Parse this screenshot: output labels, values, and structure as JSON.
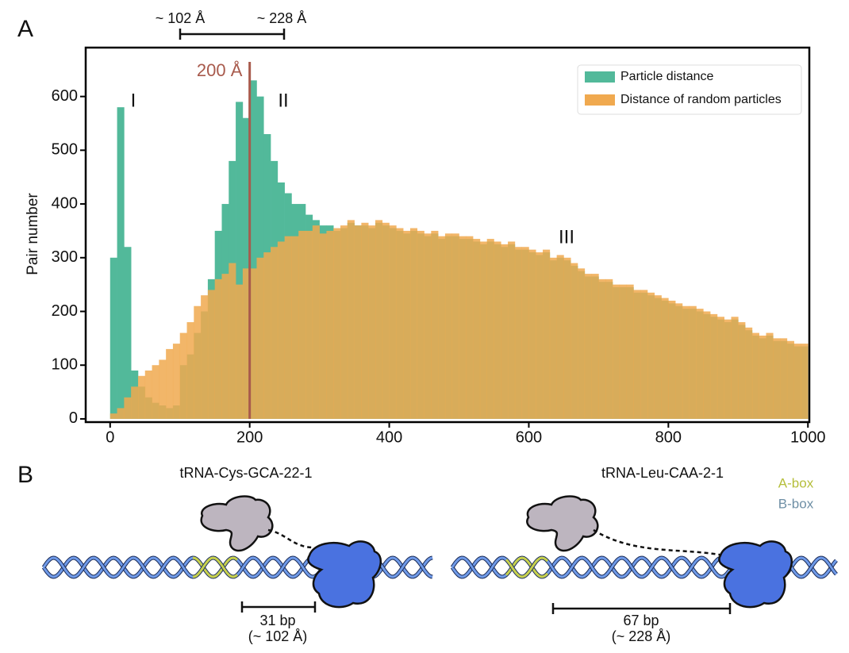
{
  "chart_data": {
    "type": "histogram",
    "panel_label": "A",
    "y_label": "Pair number",
    "range_marker": [
      "~ 102 Å",
      "~ 228 Å"
    ],
    "vline": {
      "value": 200,
      "label": "200 Å",
      "color": "#a85a4c"
    },
    "annotations": [
      "I",
      "II",
      "III"
    ],
    "bins": [
      0,
      10,
      20,
      30,
      40,
      50,
      60,
      70,
      80,
      90,
      100,
      110,
      120,
      130,
      140,
      150,
      160,
      170,
      180,
      190,
      200,
      210,
      220,
      230,
      240,
      250,
      260,
      270,
      280,
      290,
      300,
      310,
      320,
      330,
      340,
      350,
      360,
      370,
      380,
      390,
      400,
      410,
      420,
      430,
      440,
      450,
      460,
      470,
      480,
      490,
      500,
      510,
      520,
      530,
      540,
      550,
      560,
      570,
      580,
      590,
      600,
      610,
      620,
      630,
      640,
      650,
      660,
      670,
      680,
      690,
      700,
      710,
      720,
      730,
      740,
      750,
      760,
      770,
      780,
      790,
      800,
      810,
      820,
      830,
      840,
      850,
      860,
      870,
      880,
      890,
      900,
      910,
      920,
      930,
      940,
      950,
      960,
      970,
      980,
      990,
      1000
    ],
    "series": [
      {
        "name": "Particle distance",
        "color": "#52b99a",
        "values": [
          300,
          580,
          320,
          90,
          60,
          40,
          30,
          25,
          20,
          25,
          100,
          120,
          160,
          200,
          260,
          350,
          400,
          480,
          590,
          560,
          630,
          600,
          530,
          480,
          440,
          420,
          400,
          400,
          380,
          370,
          360,
          360,
          350,
          355,
          365,
          360,
          360,
          355,
          365,
          360,
          355,
          350,
          345,
          350,
          345,
          340,
          345,
          335,
          340,
          340,
          335,
          335,
          330,
          325,
          330,
          325,
          320,
          325,
          315,
          315,
          310,
          305,
          310,
          295,
          300,
          295,
          285,
          275,
          265,
          265,
          255,
          255,
          245,
          245,
          245,
          235,
          235,
          230,
          225,
          220,
          215,
          210,
          205,
          205,
          200,
          195,
          190,
          185,
          180,
          185,
          175,
          165,
          155,
          150,
          155,
          145,
          145,
          140,
          135,
          135
        ]
      },
      {
        "name": "Distance of random particles",
        "color": "#f0a94f",
        "values": [
          10,
          20,
          40,
          60,
          80,
          90,
          100,
          110,
          130,
          140,
          160,
          180,
          210,
          230,
          240,
          260,
          270,
          290,
          250,
          280,
          280,
          300,
          310,
          320,
          330,
          340,
          340,
          350,
          350,
          360,
          345,
          350,
          355,
          360,
          370,
          360,
          365,
          360,
          370,
          365,
          360,
          355,
          350,
          355,
          350,
          345,
          350,
          340,
          345,
          345,
          340,
          340,
          335,
          330,
          335,
          330,
          325,
          330,
          320,
          320,
          315,
          310,
          315,
          300,
          305,
          300,
          290,
          280,
          270,
          270,
          260,
          260,
          250,
          250,
          250,
          240,
          240,
          235,
          230,
          225,
          220,
          215,
          210,
          210,
          205,
          200,
          195,
          190,
          185,
          190,
          180,
          170,
          160,
          155,
          160,
          150,
          150,
          145,
          140,
          140
        ]
      }
    ],
    "xlim": [
      -35,
      1002
    ],
    "ylim": [
      -6,
      691
    ],
    "xticks": [
      0,
      200,
      400,
      600,
      800,
      1000
    ],
    "yticks": [
      0,
      100,
      200,
      300,
      400,
      500,
      600
    ],
    "legend": "upper right"
  },
  "diagram": {
    "panel_label": "B",
    "legend": [
      "A-box",
      "B-box"
    ],
    "constructs": [
      {
        "name": "tRNA-Cys-GCA-22-1",
        "spacing": "31 bp",
        "distance": "(~ 102 Å)"
      },
      {
        "name": "tRNA-Leu-CAA-2-1",
        "spacing": "67 bp",
        "distance": "(~ 228 Å)"
      }
    ]
  }
}
